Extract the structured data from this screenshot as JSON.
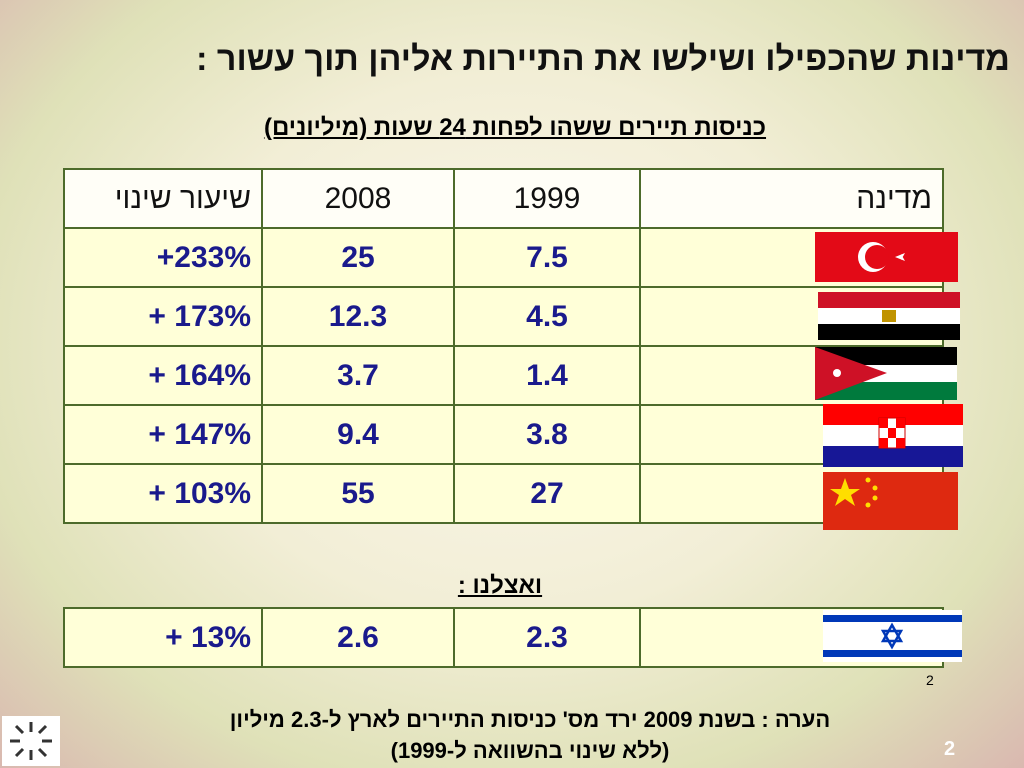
{
  "header": {
    "title": "מדינות שהכפילו ושילשו את התיירות אליהן תוך עשור :",
    "subtitle": "כניסות תיירים ששהו לפחות 24 שעות (מיליונים)"
  },
  "table": {
    "columns": [
      "מדינה",
      "1999",
      "2008",
      "שיעור שינוי"
    ],
    "rows": [
      [
        "תורכיה",
        7.5,
        25,
        "+233%"
      ],
      [
        "מצרים",
        4.5,
        12.3,
        "+ 173%"
      ],
      [
        "ירדן",
        1.4,
        3.7,
        "+ 164%"
      ],
      [
        "קרואטיה",
        3.8,
        9.4,
        "+ 147%"
      ],
      [
        "סין",
        27,
        55,
        "+ 103%"
      ]
    ]
  },
  "israel": {
    "label": "ואצלנו :",
    "row": [
      "ישראל",
      2.3,
      2.6,
      "+ 13%"
    ]
  },
  "footnote_marker": "2",
  "note": {
    "lines": [
      "הערה : בשנת 2009  ירד מס' כניסות התיירים  לארץ ל-2.3 מיליון",
      "(ללא שינוי בהשוואה ל-1999)"
    ]
  },
  "slide_number": "2"
}
